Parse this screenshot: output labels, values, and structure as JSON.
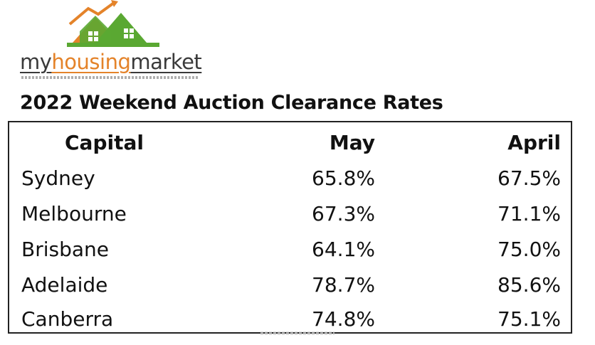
{
  "logo": {
    "word_part1": "my",
    "word_part2": "housing",
    "word_part3": "market",
    "colors": {
      "orange": "#e4832a",
      "green": "#5aa832",
      "text": "#3a3a3a"
    }
  },
  "title": "2022 Weekend Auction Clearance Rates",
  "chart_data": {
    "type": "table",
    "title": "2022 Weekend Auction Clearance Rates",
    "columns": [
      "Capital",
      "May",
      "April"
    ],
    "rows": [
      [
        "Sydney",
        "65.8%",
        "67.5%"
      ],
      [
        "Melbourne",
        "67.3%",
        "71.1%"
      ],
      [
        "Brisbane",
        "64.1%",
        "75.0%"
      ],
      [
        "Adelaide",
        "78.7%",
        "85.6%"
      ],
      [
        "Canberra",
        "74.8%",
        "75.1%"
      ]
    ]
  }
}
